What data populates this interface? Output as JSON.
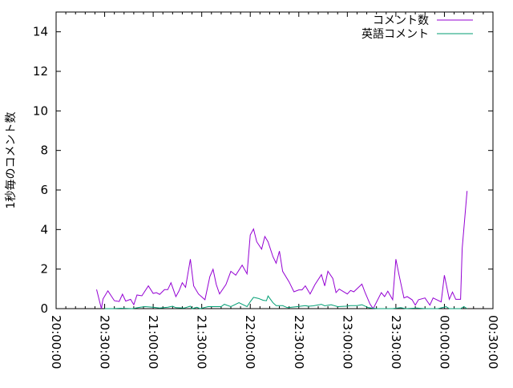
{
  "chart_data": {
    "type": "line",
    "title": "",
    "xlabel": "",
    "ylabel": "1秒毎のコメント数",
    "xlim": [
      "20:00:00",
      "00:30:00"
    ],
    "ylim": [
      0,
      15
    ],
    "x_ticks": [
      "20:00:00",
      "20:30:00",
      "21:00:00",
      "21:30:00",
      "22:00:00",
      "22:30:00",
      "23:00:00",
      "23:30:00",
      "00:00:00",
      "00:30:00"
    ],
    "y_ticks": [
      "0",
      "2",
      "4",
      "6",
      "8",
      "10",
      "12",
      "14"
    ],
    "grid": false,
    "legend_position": "top-right",
    "series": [
      {
        "name": "コメント数",
        "color": "#9400d3",
        "x": [
          "20:25",
          "20:28",
          "20:29",
          "20:32",
          "20:36",
          "20:39",
          "20:41",
          "20:43",
          "20:46",
          "20:48",
          "20:50",
          "20:53",
          "20:57",
          "21:00",
          "21:02",
          "21:04",
          "21:07",
          "21:09",
          "21:11",
          "21:14",
          "21:16",
          "21:18",
          "21:20",
          "21:23",
          "21:25",
          "21:28",
          "21:32",
          "21:35",
          "21:37",
          "21:39",
          "21:41",
          "21:45",
          "21:48",
          "21:51",
          "21:55",
          "21:58",
          "22:00",
          "22:02",
          "22:04",
          "22:07",
          "22:09",
          "22:11",
          "22:14",
          "22:16",
          "22:18",
          "22:20",
          "22:24",
          "22:27",
          "22:30",
          "22:32",
          "22:34",
          "22:37",
          "22:40",
          "22:44",
          "22:46",
          "22:48",
          "22:51",
          "22:53",
          "22:55",
          "23:00",
          "23:02",
          "23:04",
          "23:09",
          "23:11",
          "23:14",
          "23:16",
          "23:21",
          "23:23",
          "23:25",
          "23:28",
          "23:30",
          "23:32",
          "23:35",
          "23:37",
          "23:40",
          "23:42",
          "23:44",
          "23:48",
          "23:51",
          "23:53",
          "23:58",
          "00:00",
          "00:03",
          "00:05",
          "00:07",
          "00:10",
          "00:11",
          "00:14"
        ],
        "values": [
          0.97,
          0,
          0.49,
          0.9,
          0.4,
          0.36,
          0.73,
          0.38,
          0.47,
          0.2,
          0.69,
          0.65,
          1.15,
          0.77,
          0.81,
          0.72,
          0.96,
          0.96,
          1.31,
          0.61,
          0.9,
          1.31,
          1.08,
          2.5,
          1.15,
          0.74,
          0.45,
          1.62,
          1.99,
          1.22,
          0.74,
          1.22,
          1.89,
          1.69,
          2.2,
          1.76,
          3.72,
          4.03,
          3.38,
          3.01,
          3.65,
          3.38,
          2.63,
          2.3,
          2.91,
          1.89,
          1.35,
          0.85,
          0.95,
          0.95,
          1.15,
          0.74,
          1.22,
          1.72,
          1.15,
          1.89,
          1.53,
          0.81,
          0.99,
          0.74,
          0.92,
          0.85,
          1.24,
          0.81,
          0.23,
          0,
          0.81,
          0.61,
          0.88,
          0.45,
          2.5,
          1.69,
          0.54,
          0.61,
          0.45,
          0.18,
          0.45,
          0.54,
          0.18,
          0.54,
          0.34,
          1.69,
          0.47,
          0.84,
          0.47,
          0.47,
          3.04,
          5.95
        ]
      },
      {
        "name": "英語コメント",
        "color": "#009e73",
        "x": [
          "20:30",
          "20:35",
          "20:40",
          "20:47",
          "20:52",
          "20:55",
          "21:00",
          "21:04",
          "21:09",
          "21:12",
          "21:14",
          "21:19",
          "21:23",
          "21:24",
          "21:27",
          "21:29",
          "21:34",
          "21:42",
          "21:44",
          "21:48",
          "21:53",
          "21:58",
          "22:00",
          "22:02",
          "22:05",
          "22:08",
          "22:10",
          "22:11",
          "22:14",
          "22:16",
          "22:20",
          "22:23",
          "22:29",
          "22:34",
          "22:36",
          "22:39",
          "22:44",
          "22:46",
          "22:50",
          "22:54",
          "22:59",
          "23:02",
          "23:06",
          "23:09",
          "23:13",
          "23:18",
          "23:28",
          "23:33",
          "23:36",
          "23:43",
          "23:48",
          "23:56",
          "00:01",
          "00:03",
          "00:10",
          "00:12",
          "00:14"
        ],
        "values": [
          0,
          0,
          0.02,
          0,
          0.07,
          0.1,
          0.07,
          0.03,
          0.07,
          0.12,
          0.05,
          0.03,
          0.12,
          0,
          0.07,
          0,
          0.1,
          0.1,
          0.22,
          0.1,
          0.3,
          0.1,
          0.35,
          0.57,
          0.52,
          0.42,
          0.4,
          0.64,
          0.3,
          0.15,
          0.15,
          0.05,
          0.1,
          0.15,
          0.12,
          0.14,
          0.22,
          0.14,
          0.2,
          0.1,
          0.12,
          0.15,
          0.15,
          0.2,
          0.05,
          0,
          0,
          0.05,
          0,
          0.03,
          0,
          0,
          0.1,
          0,
          0,
          0.1,
          0
        ]
      }
    ]
  }
}
